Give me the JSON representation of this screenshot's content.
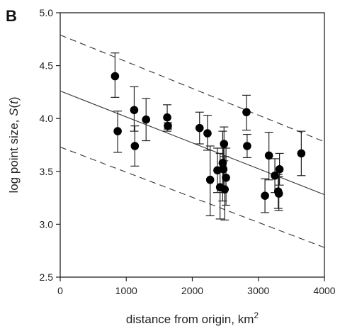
{
  "panel_label": "B",
  "chart_data": {
    "type": "scatter",
    "xlabel": "distance from origin, km",
    "xlabel_superscript": "2",
    "ylabel_prefix": "log point size, ",
    "ylabel_italic": "S",
    "ylabel_paren_open": "(",
    "ylabel_italic_t": "t",
    "ylabel_paren_close": ")",
    "xlim": [
      0,
      4000
    ],
    "ylim": [
      2.5,
      5.0
    ],
    "xticks": [
      0,
      1000,
      2000,
      3000,
      4000
    ],
    "xtick_labels": [
      "0",
      "1000",
      "2000",
      "3000",
      "4000"
    ],
    "yticks": [
      2.5,
      3.0,
      3.5,
      4.0,
      4.5,
      5.0
    ],
    "ytick_labels": [
      "2.5",
      "3.0",
      "3.5",
      "4.0",
      "4.5",
      "5.0"
    ],
    "grid": false,
    "points": [
      {
        "x": 830,
        "y": 4.4,
        "lo": 4.2,
        "hi": 4.62
      },
      {
        "x": 870,
        "y": 3.88,
        "lo": 3.68,
        "hi": 4.07
      },
      {
        "x": 1120,
        "y": 4.08,
        "lo": 3.88,
        "hi": 4.3
      },
      {
        "x": 1130,
        "y": 3.74,
        "lo": 3.55,
        "hi": 3.93
      },
      {
        "x": 1300,
        "y": 3.99,
        "lo": 3.79,
        "hi": 4.19
      },
      {
        "x": 1620,
        "y": 4.01,
        "lo": 3.88,
        "hi": 4.13
      },
      {
        "x": 1630,
        "y": 3.93,
        "lo": 3.9,
        "hi": 3.96
      },
      {
        "x": 2110,
        "y": 3.91,
        "lo": 3.76,
        "hi": 4.06
      },
      {
        "x": 2230,
        "y": 3.86,
        "lo": 3.7,
        "hi": 4.03
      },
      {
        "x": 2270,
        "y": 3.42,
        "lo": 3.08,
        "hi": 3.74
      },
      {
        "x": 2380,
        "y": 3.51,
        "lo": 3.3,
        "hi": 3.72
      },
      {
        "x": 2420,
        "y": 3.35,
        "lo": 3.05,
        "hi": 3.67
      },
      {
        "x": 2460,
        "y": 3.58,
        "lo": 3.22,
        "hi": 3.88
      },
      {
        "x": 2470,
        "y": 3.52,
        "lo": 3.3,
        "hi": 3.72
      },
      {
        "x": 2480,
        "y": 3.76,
        "lo": 3.6,
        "hi": 3.92
      },
      {
        "x": 2490,
        "y": 3.33,
        "lo": 3.04,
        "hi": 3.64
      },
      {
        "x": 2510,
        "y": 3.44,
        "lo": 3.18,
        "hi": 3.72
      },
      {
        "x": 2820,
        "y": 4.06,
        "lo": 3.89,
        "hi": 4.22
      },
      {
        "x": 2830,
        "y": 3.74,
        "lo": 3.63,
        "hi": 3.85
      },
      {
        "x": 3100,
        "y": 3.27,
        "lo": 3.11,
        "hi": 3.43
      },
      {
        "x": 3160,
        "y": 3.65,
        "lo": 3.42,
        "hi": 3.87
      },
      {
        "x": 3250,
        "y": 3.46,
        "lo": 3.3,
        "hi": 3.62
      },
      {
        "x": 3300,
        "y": 3.31,
        "lo": 3.15,
        "hi": 3.47
      },
      {
        "x": 3310,
        "y": 3.29,
        "lo": 3.13,
        "hi": 3.45
      },
      {
        "x": 3320,
        "y": 3.52,
        "lo": 3.37,
        "hi": 3.67
      },
      {
        "x": 3650,
        "y": 3.67,
        "lo": 3.46,
        "hi": 3.88
      }
    ],
    "regression": {
      "x": [
        0,
        4000
      ],
      "y": [
        4.26,
        3.28
      ],
      "style": "solid"
    },
    "upper_band": {
      "x": [
        0,
        4000
      ],
      "y": [
        4.79,
        3.78
      ],
      "style": "dashed"
    },
    "lower_band": {
      "x": [
        0,
        4000
      ],
      "y": [
        3.73,
        2.78
      ],
      "style": "dashed"
    }
  }
}
